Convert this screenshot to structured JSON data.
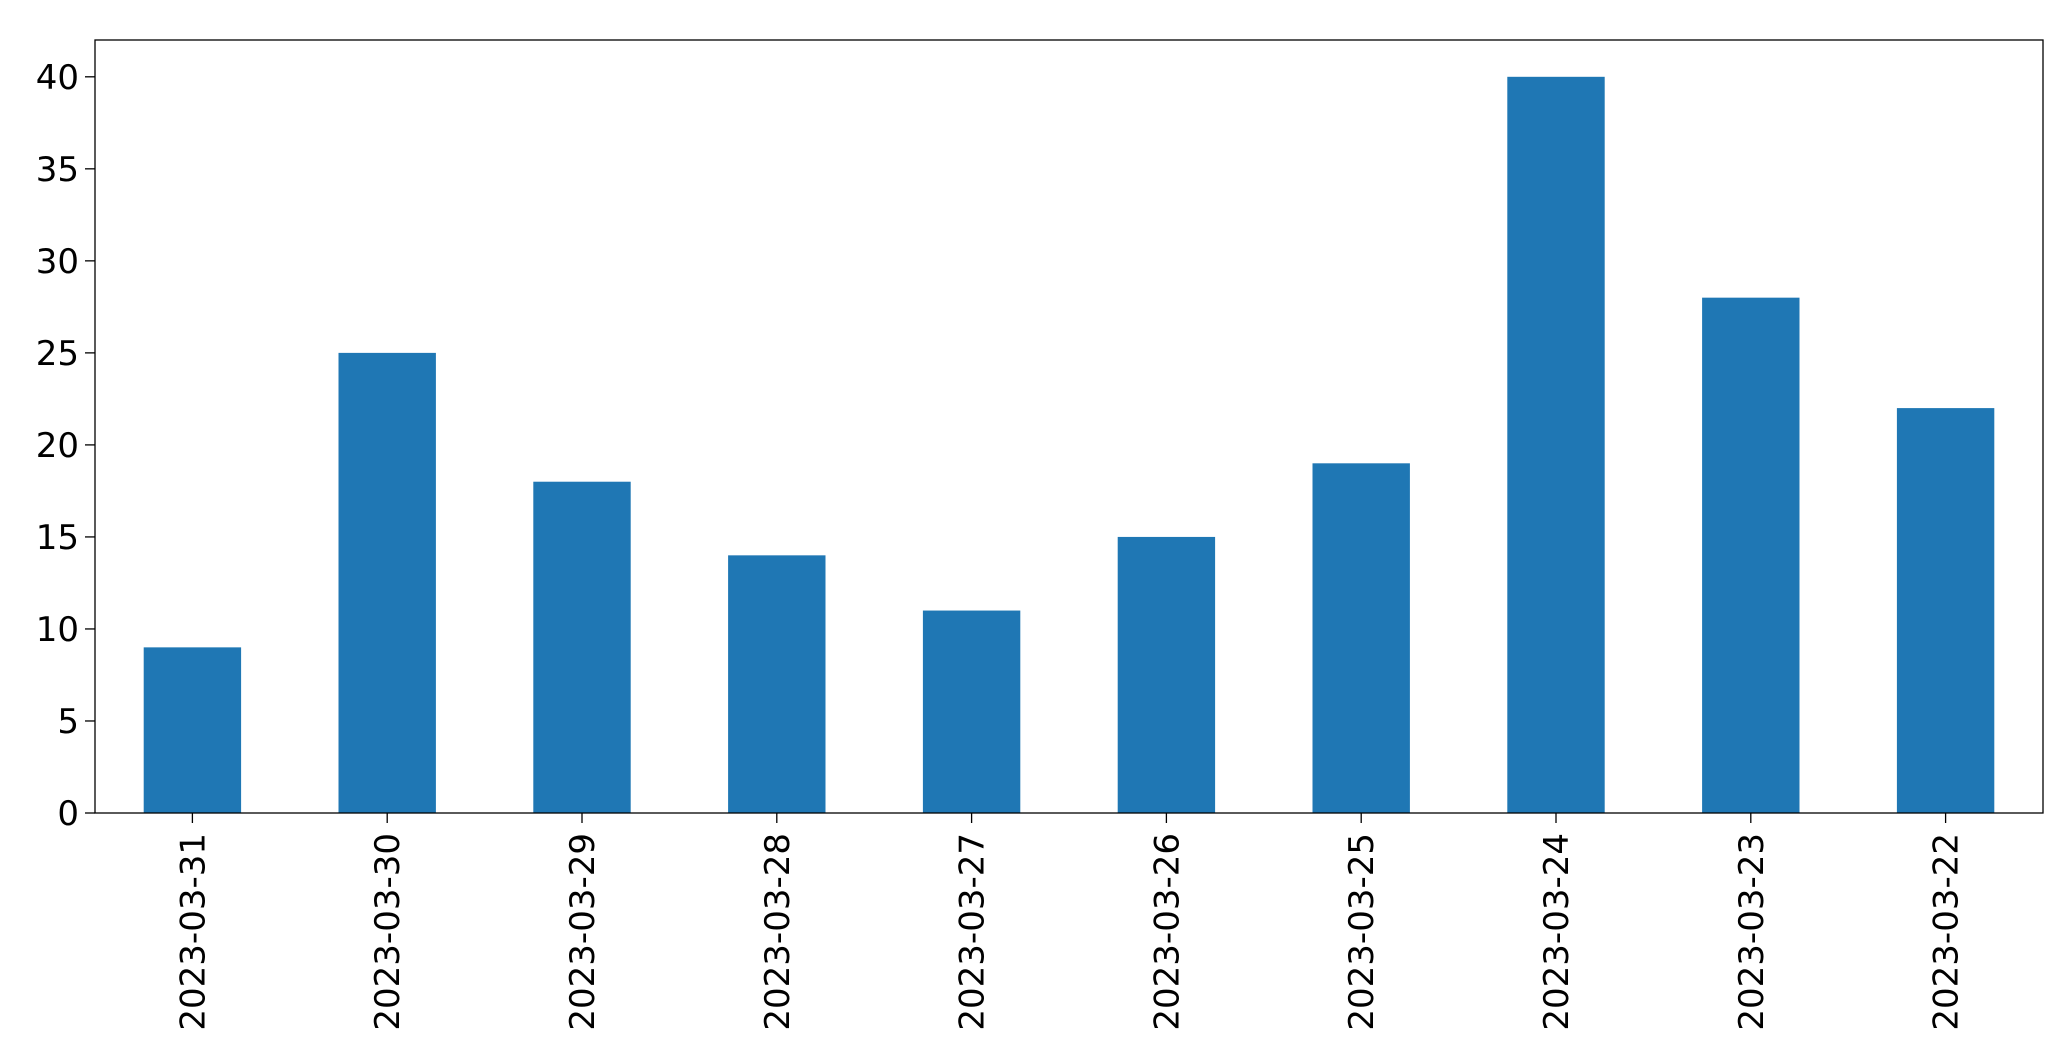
{
  "chart_data": {
    "type": "bar",
    "title": "",
    "xlabel": "",
    "ylabel": "",
    "categories": [
      "2023-03-31",
      "2023-03-30",
      "2023-03-29",
      "2023-03-28",
      "2023-03-27",
      "2023-03-26",
      "2023-03-25",
      "2023-03-24",
      "2023-03-23",
      "2023-03-22"
    ],
    "values": [
      9,
      25,
      18,
      14,
      11,
      15,
      19,
      40,
      28,
      22
    ],
    "ylim": [
      0,
      42
    ],
    "yticks": [
      0,
      5,
      10,
      15,
      20,
      25,
      30,
      35,
      40
    ],
    "bar_color": "#1f77b4",
    "grid": false,
    "legend": "none"
  }
}
